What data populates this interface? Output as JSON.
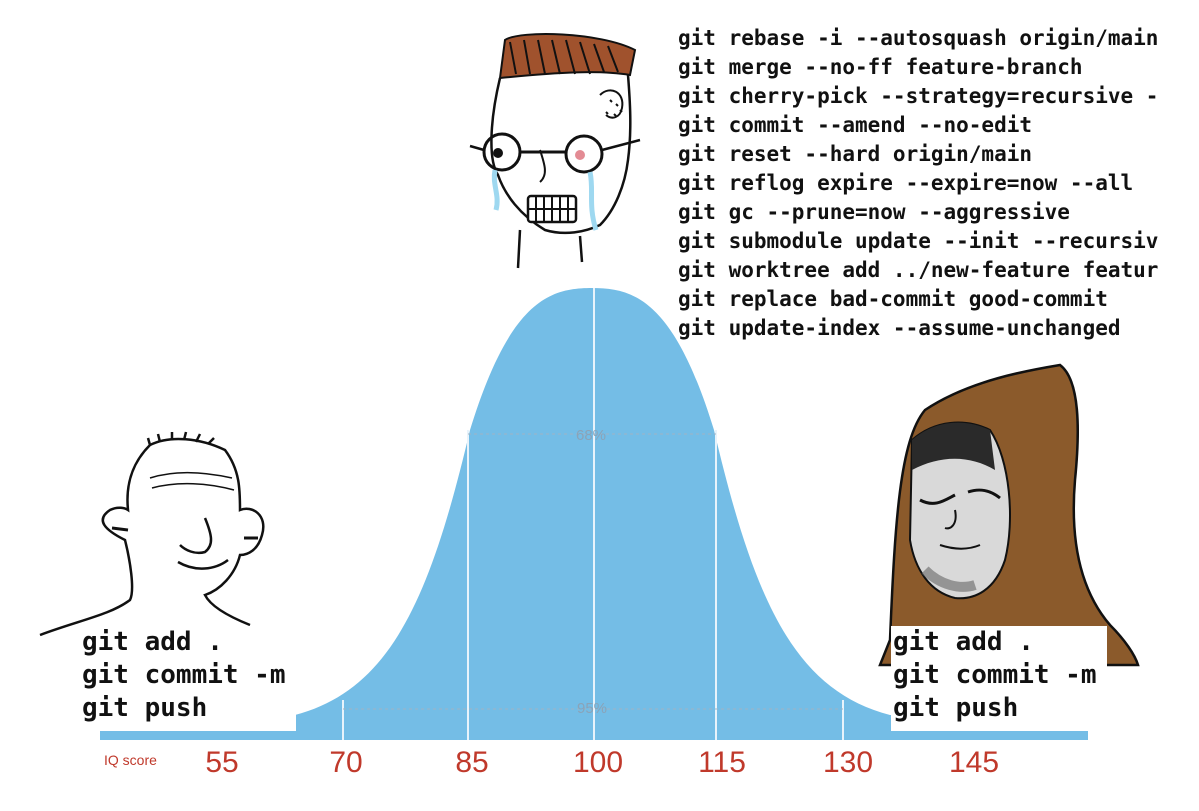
{
  "top_commands": [
    "git rebase -i --autosquash origin/main",
    "git merge --no-ff feature-branch",
    "git cherry-pick --strategy=recursive -",
    "git commit --amend --no-edit",
    "git reset --hard origin/main",
    "git reflog expire --expire=now --all",
    "git gc --prune=now --aggressive",
    "git submodule update --init --recursiv",
    "git worktree add ../new-feature featur",
    "git replace bad-commit good-commit",
    "git update-index --assume-unchanged"
  ],
  "left_commands": [
    "git add .",
    "git commit -m",
    "git push"
  ],
  "right_commands": [
    "git add .",
    "git commit -m",
    "git push"
  ],
  "chart_data": {
    "type": "area",
    "xlabel": "IQ score",
    "ticks": [
      "55",
      "70",
      "85",
      "100",
      "115",
      "130",
      "145"
    ],
    "bands": [
      "68%",
      "95%"
    ],
    "fill_color": "#74bde6"
  },
  "colors": {
    "curve_fill": "#74bde6",
    "tick_text": "#c0392b",
    "hair_brown": "#a0522d",
    "hood_brown": "#7a4a1e"
  },
  "icons": {
    "left_character": "wojak-simple-face",
    "middle_character": "crying-nerd-wojak",
    "right_character": "hooded-wojak"
  }
}
